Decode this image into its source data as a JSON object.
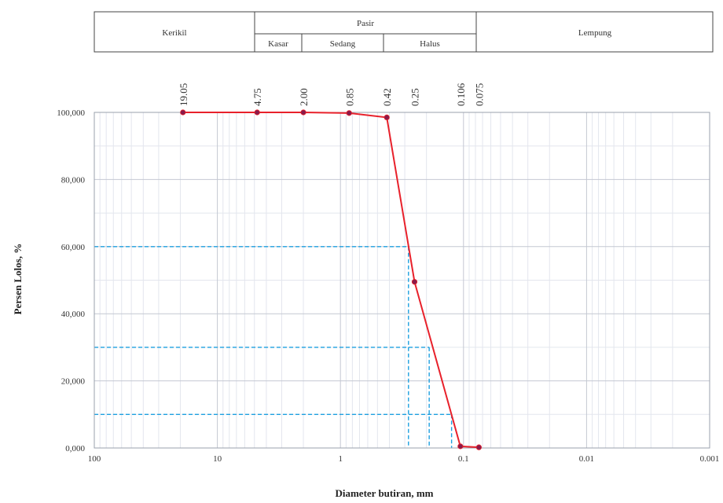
{
  "soil_scale": {
    "kerikil": "Kerikil",
    "pasir": "Pasir",
    "kasar": "Kasar",
    "sedang": "Sedang",
    "halus": "Halus",
    "lempung": "Lempung"
  },
  "chart_data": {
    "type": "line",
    "xlabel": "Diameter butiran, mm",
    "ylabel": "Persen Lolos, %",
    "x_scale": "log",
    "x_reversed": true,
    "xlim": [
      100,
      0.001
    ],
    "ylim": [
      0,
      100
    ],
    "x_ticks": [
      {
        "value": 100,
        "label": "100"
      },
      {
        "value": 10,
        "label": "10"
      },
      {
        "value": 1,
        "label": "1"
      },
      {
        "value": 0.1,
        "label": "0.1"
      },
      {
        "value": 0.01,
        "label": "0.01"
      },
      {
        "value": 0.001,
        "label": "0.001"
      }
    ],
    "y_ticks": [
      {
        "value": 0,
        "label": "0,000"
      },
      {
        "value": 20,
        "label": "20,000"
      },
      {
        "value": 40,
        "label": "40,000"
      },
      {
        "value": 60,
        "label": "60,000"
      },
      {
        "value": 80,
        "label": "80,000"
      },
      {
        "value": 100,
        "label": "100,000"
      }
    ],
    "sieve_labels": [
      {
        "value": 19.05,
        "label": "19.05"
      },
      {
        "value": 4.75,
        "label": "4.75"
      },
      {
        "value": 2.0,
        "label": "2.00"
      },
      {
        "value": 0.85,
        "label": "0.85"
      },
      {
        "value": 0.42,
        "label": "0.42"
      },
      {
        "value": 0.25,
        "label": "0.25"
      },
      {
        "value": 0.106,
        "label": "0.106"
      },
      {
        "value": 0.075,
        "label": "0.075"
      }
    ],
    "x": [
      19.05,
      4.75,
      2.0,
      0.85,
      0.42,
      0.25,
      0.106,
      0.075
    ],
    "y": [
      100,
      100,
      100,
      99.8,
      98.5,
      49.5,
      0.5,
      0.2
    ],
    "grid": true,
    "series_color": "#e8212b",
    "marker_color": "#8a1a4a",
    "guide_color": "#1ea0e0",
    "guides": [
      {
        "percent": 60,
        "diameter": 0.28
      },
      {
        "percent": 30,
        "diameter": 0.19
      },
      {
        "percent": 10,
        "diameter": 0.125
      }
    ]
  }
}
